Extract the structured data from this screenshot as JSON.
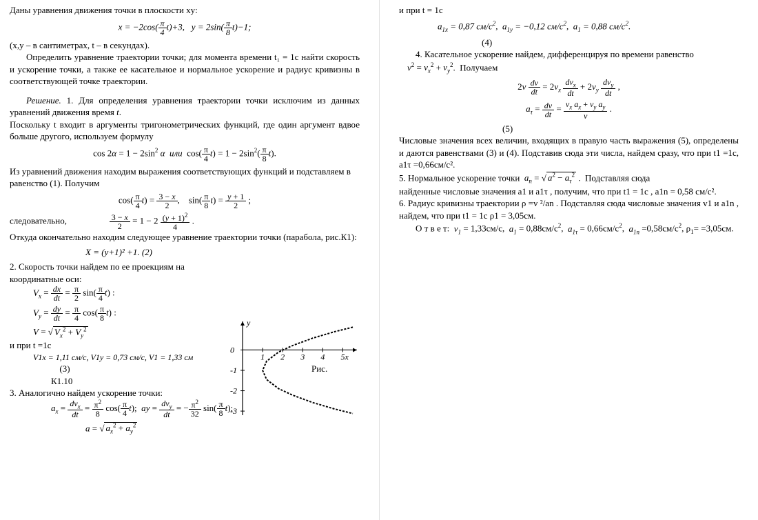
{
  "text_color": "#000000",
  "bg": "#ffffff",
  "left": {
    "p1": "Даны уравнения движения точки в плоскости  xy:",
    "eq1": "x = −2cos(π⁄4 t)+3,   y = 2sin(π⁄8 t)−1;",
    "p2": "(x,y – в сантиметрах, t – в секундах).",
    "p3": "Определить уравнение траектории точки; для момента времени t₁ = 1с найти скорость и ускорение точки, а также ее касательное и нормальное ускорение и радиус кривизны в соответствующей точке траектории.",
    "p4": "Решение. 1. Для определения уравнения траектории точки исключим из данных уравнений движения время t.",
    "p5": "Поскольку t входит в аргументы тригонометрических функций, где один аргумент вдвое больше другого, используем формулу",
    "eq2": "cos 2α = 1 − 2sin² α  или  cos(π⁄4 t) = 1 − 2sin²(π⁄8 t).",
    "p6": "Из уравнений движения находим выражения соответствующих функций и подставляем в равенство (1). Получим",
    "eq3": "cos(π⁄4 t) = (3 − x)/2,   sin(π⁄8 t) = (y + 1)/2 ;",
    "p7": "следовательно,",
    "eq4": "(3 − x)/2 = 1 − 2·(y + 1)² / 4 .",
    "p8": "Откуда окончательно находим следующее уравнение траектории точки (парабола, рис.К1):",
    "eq5": "X = (y+1)² +1.                  (2)",
    "p9": "2. Скорость точки найдем по ее проекциям на координатные оси:",
    "eqVx": "Vx = dx/dt = π/2 · sin(π⁄4 t) :",
    "eqVy": "Vy = dy/dt = π/4 · cos(π⁄8 t) :",
    "eqV": "V = √(Vx² + Vy²)",
    "p10": "и при  t =1с",
    "eqVn": "V1x = 1,11 см/с,  V1y = 0,73 см/с,  V1 = 1,33 см",
    "eqNum": "(3)",
    "ris": "Рис.",
    "k110": "К1.10",
    "p11": "3. Аналогично найдем ускорение точки:",
    "eqAx": "ax = dvx/dt = π²/8 · cos(π⁄4 t);  ay = dvy/dt = −π²/32 · sin(π⁄8 t);",
    "eqA": "a = √(ax² + ay²)"
  },
  "right": {
    "p1": "и при t = 1с",
    "eqA1": "a1x = 0,87 см/с²,  a1y = −0,12 см/с²,  a1 = 0,88 см/с².",
    "eqNum": "(4)",
    "p2": "4. Касательное ускорение найдем, дифференцируя по времени равенство",
    "eqV2": "v² = vx² + vy².  Получаем",
    "eqD1": "2v · dv/dt = 2vx · dvx/dt + 2vy · dvy/dt ,",
    "eqD2": "aτ = dv/dt = (vx ax + vy ay) / v .",
    "eqNum2": "(5)",
    "p3": "Числовые значения всех величин, входящих в правую часть выражения (5), определены и даются равенствами (3) и (4). Подставив сюда эти числа, найдем сразу, что при  t1 =1с,  a1τ =0,66см/с².",
    "p4": "5. Нормальное ускорение точки  an = √(a² − aτ²) .  Подставляя сюда",
    "p5": "найденные числовые значения a1 и a1τ ,  получим, что при  t1 = 1с , a1n = 0,58 см/с².",
    "p6": "6. Радиус кривизны траектории   ρ =v ²/an .  Подставляя сюда числовые значения  v1 и a1n , найдем, что при  t1 = 1с  ρ1 = 3,05см.",
    "p7": "О т в е т:  v1 = 1,33см/с,  a1 = 0,88см/с²,  a1τ = 0,66см/с²,  a1n =0,58см/с², ρ1= =3,05см."
  },
  "chart": {
    "type": "line",
    "background_color": "#ffffff",
    "xlim": [
      0,
      5.5
    ],
    "ylim": [
      -3.2,
      1.2
    ],
    "xticks": [
      1,
      2,
      3,
      4,
      5
    ],
    "xlabels": [
      "1",
      "2",
      "3",
      "4",
      "5"
    ],
    "yticks": [
      0,
      -1,
      -2,
      -3
    ],
    "ylabels": [
      "0",
      "-1",
      "-2",
      "-3"
    ],
    "axis_color": "#000000",
    "axis_width": 1.2,
    "xlabel": "x",
    "ylabel": "y",
    "xlabel_right": "5x",
    "curve_color": "#000000",
    "curve_width": 2,
    "curve_dash": "3 2",
    "curve": [
      [
        5.5,
        1.12
      ],
      [
        4.6,
        0.9
      ],
      [
        3.5,
        0.58
      ],
      [
        2.5,
        0.22
      ],
      [
        1.8,
        -0.1
      ],
      [
        1.2,
        -0.55
      ],
      [
        1.0,
        -1.0
      ],
      [
        1.2,
        -1.45
      ],
      [
        1.8,
        -1.9
      ],
      [
        2.5,
        -2.22
      ],
      [
        3.5,
        -2.58
      ],
      [
        4.6,
        -2.9
      ],
      [
        5.5,
        -3.12
      ]
    ]
  }
}
